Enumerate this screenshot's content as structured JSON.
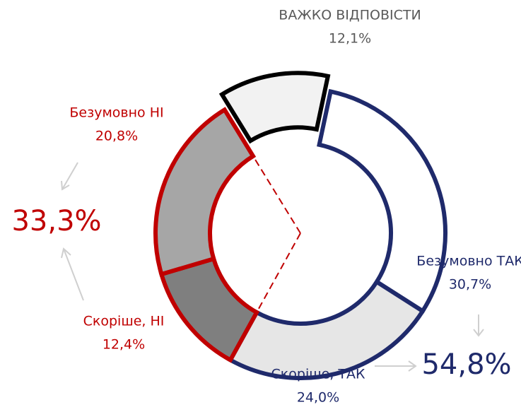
{
  "chart_data": {
    "type": "donut",
    "categories": [
      "Безумовно ТАК",
      "Скоріше, ТАК",
      "Скоріше, НІ",
      "Безумовно НІ",
      "ВАЖКО ВІДПОВІСТИ"
    ],
    "values": [
      30.7,
      24.0,
      12.4,
      20.8,
      12.1
    ],
    "value_labels": [
      "30,7%",
      "24,0%",
      "12,4%",
      "20,8%",
      "12,1%"
    ],
    "colors": [
      "#ffffff",
      "#e6e6e6",
      "#7f7f7f",
      "#a6a6a6",
      "#f2f2f2"
    ],
    "edge_colors": [
      "#1f2a6b",
      "#1f2a6b",
      "#c00000",
      "#c00000",
      "#000000"
    ],
    "label_colors": [
      "#1f2a6b",
      "#1f2a6b",
      "#c00000",
      "#c00000",
      "#595959"
    ],
    "annotations": [
      {
        "text": "33,3%",
        "color": "#c00000"
      },
      {
        "text": "54,8%",
        "color": "#1f2a6b"
      }
    ]
  }
}
